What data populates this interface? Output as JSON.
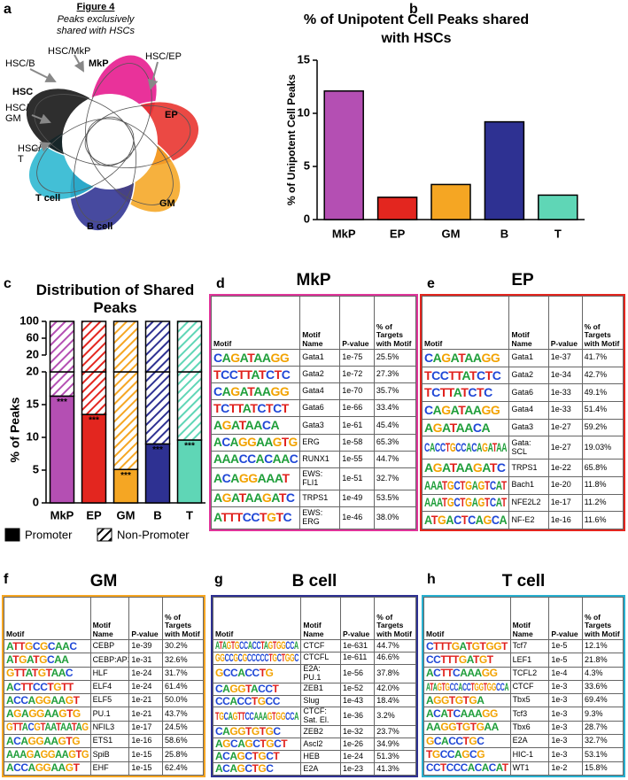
{
  "panel_labels": [
    "a",
    "b",
    "c",
    "d",
    "e",
    "f",
    "g",
    "h"
  ],
  "diagram": {
    "title": "Figure 4",
    "subtitle": "Peaks exclusively shared with HSCs",
    "labels": [
      "HSC/B",
      "HSC/MkP",
      "MkP",
      "HSC/EP",
      "HSC",
      "EP",
      "HSC/ GM",
      "HSC/ T",
      "T cell",
      "GM",
      "B cell"
    ]
  },
  "chart_data": [
    {
      "type": "bar",
      "title": "% of Unipotent Cell Peaks shared with HSCs",
      "ylabel": "% of Unipotent Cell Peaks",
      "categories": [
        "MkP",
        "EP",
        "GM",
        "B",
        "T"
      ],
      "values": [
        12.1,
        2.1,
        3.3,
        9.2,
        2.3
      ],
      "colors": [
        "#b44fb3",
        "#e3261f",
        "#f5a623",
        "#2e3192",
        "#5fd6b6"
      ],
      "ylim": [
        0,
        15
      ],
      "yticks": [
        0,
        5,
        10,
        15
      ]
    },
    {
      "type": "stacked_bar",
      "title": "Distribution of Shared Peaks",
      "ylabel": "% of Peaks",
      "categories": [
        "MkP",
        "EP",
        "GM",
        "B",
        "T"
      ],
      "colors": [
        "#b44fb3",
        "#e3261f",
        "#f5a623",
        "#2e3192",
        "#5fd6b6"
      ],
      "series": [
        {
          "name": "Promoter",
          "color": "#000000",
          "style": "solid",
          "values": [
            16.3,
            13.5,
            5.1,
            9.0,
            9.6
          ]
        },
        {
          "name": "Non-Promoter",
          "color": "#000000",
          "style": "hatched",
          "values": [
            83.7,
            86.5,
            94.9,
            91.0,
            90.4
          ]
        }
      ],
      "annotations": [
        "***",
        "***",
        "***",
        "***",
        "***"
      ],
      "ylim": [
        0,
        100
      ],
      "yticks": [
        0,
        5,
        10,
        15,
        20,
        60,
        100
      ],
      "axis_break": 20
    }
  ],
  "tables": [
    {
      "title": "MkP",
      "border_color": "#e0359a",
      "columns": [
        "Motif",
        "Motif Name",
        "P-value",
        "% of Targets with Motif"
      ],
      "rows": [
        [
          "CAGATAAGG",
          "Gata1",
          "1e-75",
          "25.5%"
        ],
        [
          "TCCTTATCTC",
          "Gata2",
          "1e-72",
          "27.3%"
        ],
        [
          "CAGATAAGG",
          "Gata4",
          "1e-70",
          "35.7%"
        ],
        [
          "TCTTATCTCT",
          "Gata6",
          "1e-66",
          "33.4%"
        ],
        [
          "AGATAACA",
          "Gata3",
          "1e-61",
          "45.4%"
        ],
        [
          "ACAGGAAGTG",
          "ERG",
          "1e-58",
          "65.3%"
        ],
        [
          "AAACCACAAC",
          "RUNX1",
          "1e-55",
          "44.7%"
        ],
        [
          "ACAGGAAAT",
          "EWS: FLI1",
          "1e-51",
          "32.7%"
        ],
        [
          "AGATAAGATC",
          "TRPS1",
          "1e-49",
          "53.5%"
        ],
        [
          "ATTTCCTGTC",
          "EWS: ERG",
          "1e-46",
          "38.0%"
        ]
      ]
    },
    {
      "title": "EP",
      "border_color": "#e3261f",
      "columns": [
        "Motif",
        "Motif Name",
        "P-value",
        "% of Targets with Motif"
      ],
      "rows": [
        [
          "CAGATAAGG",
          "Gata1",
          "1e-37",
          "41.7%"
        ],
        [
          "TCCTTATCTC",
          "Gata2",
          "1e-34",
          "42.7%"
        ],
        [
          "TCTTATCTC",
          "Gata6",
          "1e-33",
          "49.1%"
        ],
        [
          "CAGATAAGG",
          "Gata4",
          "1e-33",
          "51.4%"
        ],
        [
          "AGATAACA",
          "Gata3",
          "1e-27",
          "59.2%"
        ],
        [
          "CACCTGCCACAGATAA",
          "Gata: SCL",
          "1e-27",
          "19.03%"
        ],
        [
          "AGATAAGATC",
          "TRPS1",
          "1e-22",
          "65.8%"
        ],
        [
          "AAATGCTGAGTCAT",
          "Bach1",
          "1e-20",
          "11.8%"
        ],
        [
          "AAATGCTGAGTCAT",
          "NFE2L2",
          "1e-17",
          "11.2%"
        ],
        [
          "ATGACTCAGCA",
          "NF-E2",
          "1e-16",
          "11.6%"
        ]
      ]
    },
    {
      "title": "GM",
      "border_color": "#f5a623",
      "columns": [
        "Motif",
        "Motif Name",
        "P-value",
        "% of Targets with Motif"
      ],
      "rows": [
        [
          "ATTGCGCAAC",
          "CEBP",
          "1e-39",
          "30.2%"
        ],
        [
          "ATGATGCAA",
          "CEBP:AP1",
          "1e-31",
          "32.6%"
        ],
        [
          "GTTATGTAAC",
          "HLF",
          "1e-24",
          "31.7%"
        ],
        [
          "ACTTCCTGTT",
          "ELF4",
          "1e-24",
          "61.4%"
        ],
        [
          "ACCAGGAAGT",
          "ELF5",
          "1e-21",
          "50.0%"
        ],
        [
          "AGAGGAAGTG",
          "PU.1",
          "1e-21",
          "43.7%"
        ],
        [
          "GTTACGTAATAATAG",
          "NFIL3",
          "1e-17",
          "24.5%"
        ],
        [
          "ACAGGAAGTG",
          "ETS1",
          "1e-16",
          "58.6%"
        ],
        [
          "AAAGAGGAAGTG",
          "SpiB",
          "1e-15",
          "25.8%"
        ],
        [
          "ACCAGGAAGT",
          "EHF",
          "1e-15",
          "62.4%"
        ]
      ]
    },
    {
      "title": "B cell",
      "border_color": "#2e3192",
      "columns": [
        "Motif",
        "Motif Name",
        "P-value",
        "% of Targets with Motif"
      ],
      "rows": [
        [
          "ATAGTGCCACCTAGTGGCCA",
          "CTCF",
          "1e-631",
          "44.7%"
        ],
        [
          "GGCCGCGCCCCCTGCTGGC",
          "CTCFL",
          "1e-611",
          "46.6%"
        ],
        [
          "GCCACCTG",
          "E2A: PU.1",
          "1e-56",
          "37.8%"
        ],
        [
          "CAGGTACCT",
          "ZEB1",
          "1e-52",
          "42.0%"
        ],
        [
          "CCACCTGCC",
          "Slug",
          "1e-43",
          "18.4%"
        ],
        [
          "TGCAGTTCCAAAGTGGCCA",
          "CTCF: Sat. El.",
          "1e-36",
          "3.2%"
        ],
        [
          "CAGGTGTGC",
          "ZEB2",
          "1e-32",
          "23.7%"
        ],
        [
          "AGCAGCTGCT",
          "Ascl2",
          "1e-26",
          "34.9%"
        ],
        [
          "ACAGCTGCT",
          "HEB",
          "1e-24",
          "51.3%"
        ],
        [
          "ACAGCTGC",
          "E2A",
          "1e-23",
          "41.3%"
        ]
      ]
    },
    {
      "title": "T cell",
      "border_color": "#29b0d0",
      "columns": [
        "Motif",
        "Motif Name",
        "P-value",
        "% of Targets with Motif"
      ],
      "rows": [
        [
          "CTTTGATGTGGT",
          "Tcf7",
          "1e-5",
          "12.1%"
        ],
        [
          "CCTTTGATGT",
          "LEF1",
          "1e-5",
          "21.8%"
        ],
        [
          "ACTTCAAAGG",
          "TCFL2",
          "1e-4",
          "4.3%"
        ],
        [
          "ATAGTGCCACCTGGTGGCCA",
          "CTCF",
          "1e-3",
          "33.6%"
        ],
        [
          "AGGTGTGA",
          "Tbx5",
          "1e-3",
          "69.4%"
        ],
        [
          "ACATCAAAGG",
          "Tcf3",
          "1e-3",
          "9.3%"
        ],
        [
          "AAGGTGTGAA",
          "Tbx6",
          "1e-3",
          "28.7%"
        ],
        [
          "GCACCTGC",
          "E2A",
          "1e-3",
          "32.7%"
        ],
        [
          "TGCCAGCG",
          "HIC-1",
          "1e-3",
          "53.1%"
        ],
        [
          "CCTCCCACACAT",
          "WT1",
          "1e-2",
          "15.8%"
        ]
      ]
    }
  ]
}
